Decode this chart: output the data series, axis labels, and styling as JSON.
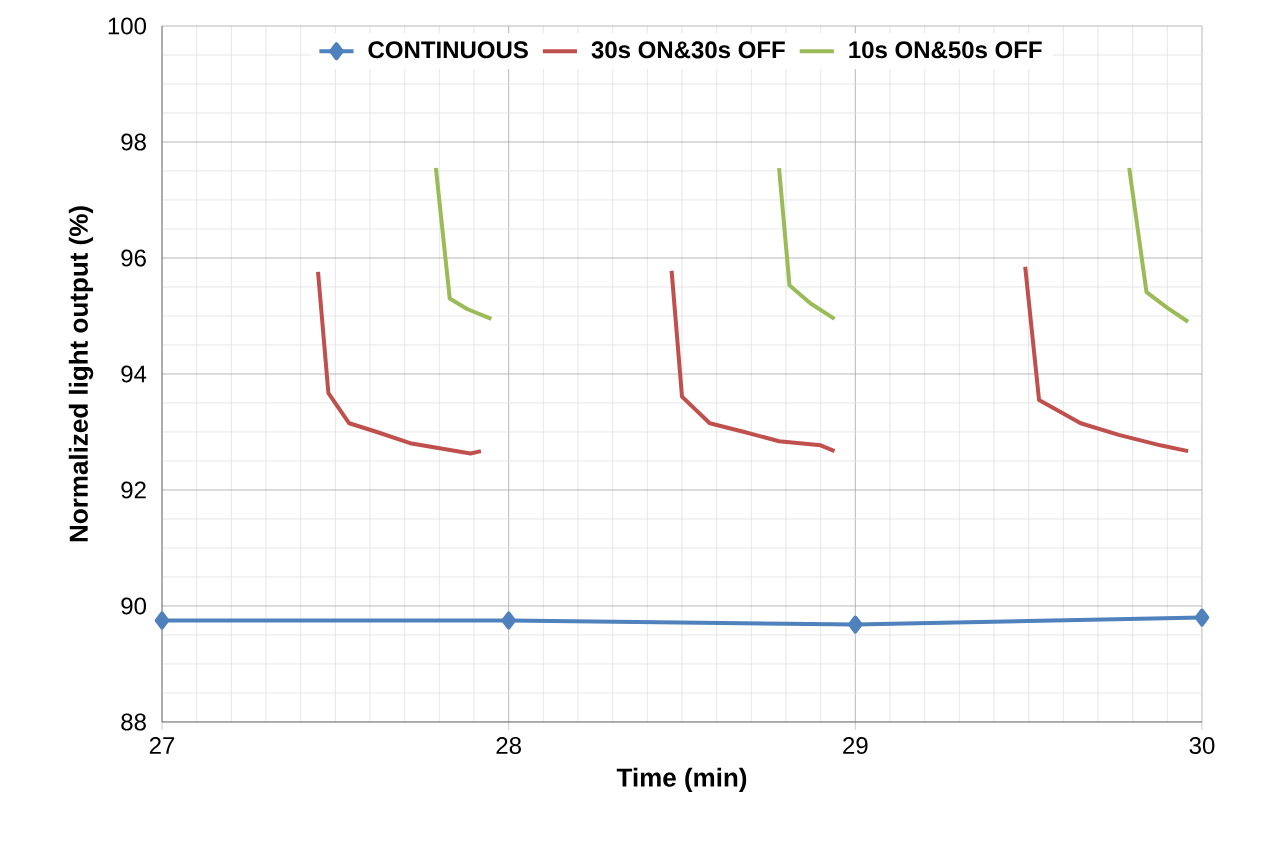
{
  "chart_data": {
    "type": "line",
    "xlabel": "Time (min)",
    "ylabel": "Normalized light output (%)",
    "xlim": [
      27,
      30
    ],
    "xticks": [
      27,
      28,
      29,
      30
    ],
    "ylim": [
      88,
      100
    ],
    "yticks": [
      88,
      90,
      92,
      94,
      96,
      98,
      100
    ],
    "grid": true,
    "legend": "top",
    "line_style": "solid",
    "series": [
      {
        "name": "CONTINUOUS",
        "color": "#4f81bd",
        "marker": "diamond",
        "x": [
          27,
          28,
          29,
          30
        ],
        "values": [
          89.75,
          89.75,
          89.68,
          89.8
        ]
      },
      {
        "name": "30s ON&30s OFF",
        "color": "#c0504d",
        "marker": "none",
        "x": [
          27.45,
          27.48,
          27.54,
          27.62,
          27.72,
          27.89,
          27.92,
          28.2,
          28.47,
          28.5,
          28.58,
          28.68,
          28.78,
          28.9,
          28.94,
          29.2,
          29.49,
          29.53,
          29.65,
          29.76,
          29.88,
          29.96
        ],
        "values": [
          95.76,
          93.67,
          93.15,
          93.0,
          92.8,
          92.63,
          92.67,
          null,
          95.78,
          93.61,
          93.15,
          93.0,
          92.84,
          92.77,
          92.67,
          null,
          95.85,
          93.55,
          93.15,
          92.95,
          92.77,
          92.67
        ]
      },
      {
        "name": "10s ON&50s OFF",
        "color": "#9bbb59",
        "marker": "none",
        "x": [
          27.79,
          27.83,
          27.88,
          27.95,
          28.3,
          28.78,
          28.81,
          28.87,
          28.94,
          29.3,
          29.79,
          29.84,
          29.9,
          29.96
        ],
        "values": [
          97.55,
          95.3,
          95.12,
          94.95,
          null,
          97.55,
          95.53,
          95.22,
          94.95,
          null,
          97.55,
          95.41,
          95.14,
          94.9
        ]
      }
    ]
  }
}
